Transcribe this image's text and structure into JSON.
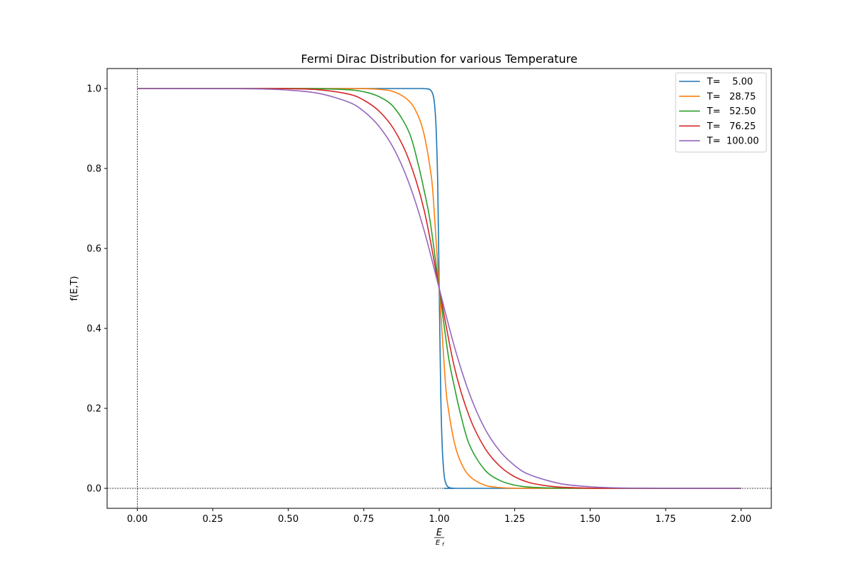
{
  "chart_data": {
    "type": "line",
    "title": "Fermi Dirac Distribution for various Temperature",
    "xlabel": {
      "numerator": "E",
      "denominator": "E",
      "denominator_subscript": "f"
    },
    "ylabel": "f(E,T)",
    "xlim": [
      -0.1,
      2.1
    ],
    "ylim": [
      -0.05,
      1.05
    ],
    "x_ticks": [
      {
        "value": 0.0,
        "label": "0.00"
      },
      {
        "value": 0.25,
        "label": "0.25"
      },
      {
        "value": 0.5,
        "label": "0.50"
      },
      {
        "value": 0.75,
        "label": "0.75"
      },
      {
        "value": 1.0,
        "label": "1.00"
      },
      {
        "value": 1.25,
        "label": "1.25"
      },
      {
        "value": 1.5,
        "label": "1.50"
      },
      {
        "value": 1.75,
        "label": "1.75"
      },
      {
        "value": 2.0,
        "label": "2.00"
      }
    ],
    "y_ticks": [
      {
        "value": 0.0,
        "label": "0.0"
      },
      {
        "value": 0.2,
        "label": "0.2"
      },
      {
        "value": 0.4,
        "label": "0.4"
      },
      {
        "value": 0.6,
        "label": "0.6"
      },
      {
        "value": 0.8,
        "label": "0.8"
      },
      {
        "value": 1.0,
        "label": "1.0"
      }
    ],
    "reference_lines": {
      "x": 0,
      "y": 0,
      "style": "dashed"
    },
    "grid": false,
    "legend_position": "top-right",
    "x_range": [
      0,
      2
    ],
    "series": [
      {
        "name": "T=    5.00",
        "color": "#1f77b4",
        "x": [
          0,
          0.5,
          0.9,
          0.95,
          0.97,
          0.98,
          0.985,
          0.99,
          0.995,
          1.0,
          1.005,
          1.01,
          1.015,
          1.02,
          1.03,
          1.05,
          1.1,
          2.0
        ],
        "y": [
          1.0,
          1.0,
          1.0,
          0.9997,
          0.997,
          0.983,
          0.957,
          0.896,
          0.762,
          0.5,
          0.238,
          0.104,
          0.043,
          0.017,
          0.003,
          0.0001,
          0.0,
          0.0
        ]
      },
      {
        "name": "T=   28.75",
        "color": "#ff7f0e",
        "x": [
          0,
          0.6,
          0.75,
          0.8,
          0.85,
          0.9,
          0.93,
          0.95,
          0.97,
          0.98,
          1.0,
          1.02,
          1.03,
          1.05,
          1.07,
          1.1,
          1.15,
          1.2,
          1.25,
          1.4,
          2.0
        ],
        "y": [
          1.0,
          1.0,
          0.9996,
          0.998,
          0.992,
          0.969,
          0.932,
          0.885,
          0.8,
          0.731,
          0.5,
          0.269,
          0.2,
          0.115,
          0.068,
          0.031,
          0.008,
          0.002,
          0.0004,
          0.0,
          0.0
        ]
      },
      {
        "name": "T=   52.50",
        "color": "#2ca02c",
        "x": [
          0,
          0.5,
          0.6,
          0.7,
          0.75,
          0.8,
          0.85,
          0.9,
          0.93,
          0.95,
          0.97,
          1.0,
          1.03,
          1.05,
          1.07,
          1.1,
          1.15,
          1.2,
          1.25,
          1.3,
          1.4,
          1.6,
          2.0
        ],
        "y": [
          1.0,
          1.0,
          0.9995,
          0.997,
          0.992,
          0.98,
          0.953,
          0.891,
          0.812,
          0.745,
          0.668,
          0.5,
          0.332,
          0.255,
          0.188,
          0.109,
          0.047,
          0.02,
          0.008,
          0.003,
          0.0005,
          0.0,
          0.0
        ]
      },
      {
        "name": "T=   76.25",
        "color": "#d62728",
        "x": [
          0,
          0.4,
          0.5,
          0.6,
          0.7,
          0.75,
          0.8,
          0.85,
          0.9,
          0.95,
          1.0,
          1.05,
          1.1,
          1.15,
          1.2,
          1.25,
          1.3,
          1.35,
          1.4,
          1.5,
          1.6,
          1.8,
          2.0
        ],
        "y": [
          1.0,
          0.9999,
          0.9995,
          0.997,
          0.986,
          0.971,
          0.944,
          0.898,
          0.821,
          0.696,
          0.5,
          0.304,
          0.179,
          0.102,
          0.056,
          0.029,
          0.014,
          0.007,
          0.003,
          0.0005,
          0.0001,
          0.0,
          0.0
        ]
      },
      {
        "name": "T=  100.00",
        "color": "#9467bd",
        "x": [
          0,
          0.3,
          0.4,
          0.5,
          0.6,
          0.7,
          0.75,
          0.8,
          0.85,
          0.9,
          0.95,
          1.0,
          1.05,
          1.1,
          1.15,
          1.2,
          1.25,
          1.3,
          1.4,
          1.5,
          1.6,
          1.7,
          1.8,
          2.0
        ],
        "y": [
          1.0,
          0.9997,
          0.999,
          0.996,
          0.988,
          0.966,
          0.943,
          0.906,
          0.849,
          0.763,
          0.645,
          0.5,
          0.355,
          0.237,
          0.151,
          0.094,
          0.057,
          0.034,
          0.012,
          0.004,
          0.001,
          0.0005,
          0.0002,
          0.0
        ]
      }
    ]
  }
}
